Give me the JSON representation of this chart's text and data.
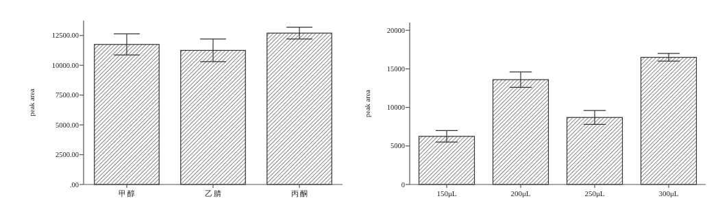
{
  "chart_data": [
    {
      "type": "bar",
      "ylabel": "peak area",
      "categories": [
        "甲 醇",
        "乙 腈",
        "丙 酮"
      ],
      "values": [
        11750,
        11250,
        12700
      ],
      "errors": [
        880,
        950,
        500
      ],
      "color": "#ffffff",
      "ylim": [
        0,
        13750
      ],
      "yticks": [
        {
          "value": 0,
          "label": ".00"
        },
        {
          "value": 2500,
          "label": "2500.00"
        },
        {
          "value": 5000,
          "label": "5000.00"
        },
        {
          "value": 7500,
          "label": "7500.00"
        },
        {
          "value": 10000,
          "label": "10000.00"
        },
        {
          "value": 12500,
          "label": "12500.00"
        }
      ]
    },
    {
      "type": "bar",
      "ylabel": "peak area",
      "categories": [
        "150μL",
        "200μL",
        "250μL",
        "300μL"
      ],
      "values": [
        6250,
        13600,
        8700,
        16500
      ],
      "errors": [
        750,
        1000,
        900,
        500
      ],
      "color": "#ffffff",
      "ylim": [
        0,
        21000
      ],
      "yticks": [
        0,
        5000,
        10000,
        15000,
        20000
      ]
    }
  ]
}
